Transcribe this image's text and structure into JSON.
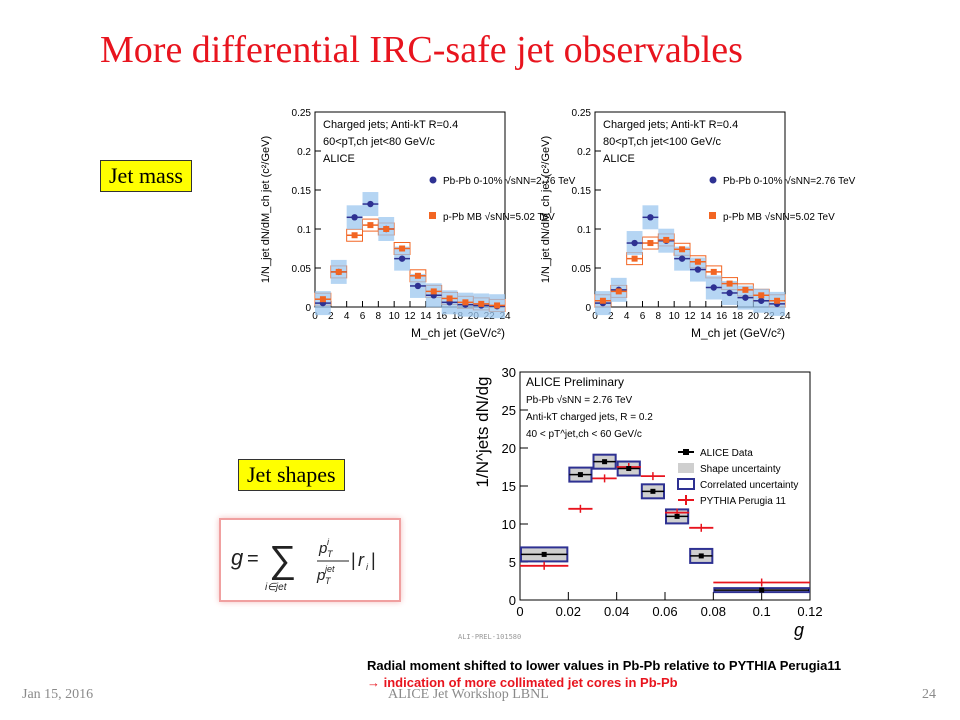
{
  "slide": {
    "title": "More differential  IRC-safe jet observables",
    "label_mass": "Jet mass",
    "label_shapes": "Jet shapes",
    "footer_date": "Jan 15, 2016",
    "footer_center": "ALICE Jet Workshop LBNL",
    "footer_page": "24",
    "note_line1": "Radial moment shifted to lower values in Pb-Pb relative to PYTHIA Perugia11",
    "note_line2": "→ indication of more collimated jet cores in Pb-Pb",
    "plot_id": "ALI-PREL-101580",
    "colors": {
      "title": "#e8141e",
      "label_bg": "#ffff00",
      "pbpb": "#2e3192",
      "pp": "#f26522",
      "pythia": "#e8141e"
    }
  },
  "chart_data": [
    {
      "type": "scatter",
      "xlabel": "M_ch jet (GeV/c²)",
      "ylabel": "1/N_jet dN/dM_ch jet (c²/GeV)",
      "xlim": [
        0,
        24
      ],
      "ylim": [
        0,
        0.25
      ],
      "xticks": [
        0,
        2,
        4,
        6,
        8,
        10,
        12,
        14,
        16,
        18,
        20,
        22,
        24
      ],
      "yticks": [
        0,
        0.05,
        0.1,
        0.15,
        0.2,
        0.25
      ],
      "legend_header": [
        "Charged jets; Anti-kT R=0.4",
        "60<pT,ch jet<80 GeV/c",
        "ALICE"
      ],
      "x": [
        1,
        3,
        5,
        7,
        9,
        11,
        13,
        15,
        17,
        19,
        21,
        23
      ],
      "series": [
        {
          "name": "Pb-Pb 0-10% √sNN=2.76 TeV",
          "values": [
            0.005,
            0.045,
            0.115,
            0.132,
            0.1,
            0.062,
            0.027,
            0.015,
            0.006,
            0.003,
            0.002,
            0.001
          ]
        },
        {
          "name": "p-Pb MB √sNN=5.02 TeV",
          "values": [
            0.01,
            0.045,
            0.092,
            0.105,
            0.1,
            0.075,
            0.04,
            0.02,
            0.011,
            0.006,
            0.004,
            0.002
          ]
        }
      ]
    },
    {
      "type": "scatter",
      "xlabel": "M_ch jet (GeV/c²)",
      "ylabel": "1/N_jet dN/dM_ch jet (c²/GeV)",
      "xlim": [
        0,
        24
      ],
      "ylim": [
        0,
        0.25
      ],
      "xticks": [
        0,
        2,
        4,
        6,
        8,
        10,
        12,
        14,
        16,
        18,
        20,
        22,
        24
      ],
      "yticks": [
        0,
        0.05,
        0.1,
        0.15,
        0.2,
        0.25
      ],
      "legend_header": [
        "Charged jets; Anti-kT R=0.4",
        "80<pT,ch jet<100 GeV/c",
        "ALICE"
      ],
      "x": [
        1,
        3,
        5,
        7,
        9,
        11,
        13,
        15,
        17,
        19,
        21,
        23
      ],
      "series": [
        {
          "name": "Pb-Pb 0-10% √sNN=2.76 TeV",
          "values": [
            0.005,
            0.022,
            0.082,
            0.115,
            0.085,
            0.062,
            0.048,
            0.025,
            0.018,
            0.012,
            0.008,
            0.004
          ]
        },
        {
          "name": "p-Pb MB √sNN=5.02 TeV",
          "values": [
            0.008,
            0.02,
            0.062,
            0.082,
            0.086,
            0.074,
            0.058,
            0.045,
            0.03,
            0.022,
            0.015,
            0.008
          ]
        }
      ]
    },
    {
      "type": "scatter",
      "xlabel": "g",
      "ylabel": "1/N^jets dN/dg",
      "xlim": [
        0,
        0.12
      ],
      "ylim": [
        0,
        30
      ],
      "xticks": [
        0,
        0.02,
        0.04,
        0.06,
        0.08,
        0.1,
        0.12
      ],
      "yticks": [
        0,
        5,
        10,
        15,
        20,
        25,
        30
      ],
      "legend_header": [
        "ALICE Preliminary",
        "Pb-Pb √sNN = 2.76 TeV",
        "Anti-kT  charged jets, R = 0.2",
        "40 < pT^jet,ch < 60 GeV/c"
      ],
      "bins": [
        [
          0,
          0.02
        ],
        [
          0.02,
          0.03
        ],
        [
          0.03,
          0.04
        ],
        [
          0.04,
          0.05
        ],
        [
          0.05,
          0.06
        ],
        [
          0.06,
          0.07
        ],
        [
          0.07,
          0.08
        ],
        [
          0.08,
          0.12
        ]
      ],
      "series": [
        {
          "name": "ALICE Data",
          "values": [
            6,
            16.5,
            18.2,
            17.3,
            14.3,
            11,
            5.8,
            1.3
          ]
        },
        {
          "name": "Shape uncertainty",
          "values": []
        },
        {
          "name": "Correlated uncertainty",
          "values": []
        },
        {
          "name": "PYTHIA Perugia 11",
          "values": [
            4.5,
            12,
            16,
            17.5,
            16.3,
            11.5,
            9.5,
            2.3
          ]
        }
      ]
    }
  ]
}
